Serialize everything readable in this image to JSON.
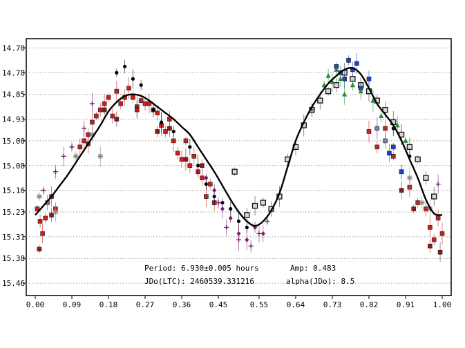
{
  "chart_data": {
    "type": "scatter",
    "title": "",
    "xlabel": "",
    "ylabel": "",
    "xlim": [
      0.0,
      1.0
    ],
    "ylim": [
      15.5,
      14.67
    ],
    "y_inverted": true,
    "grid": "horizontal-dotted",
    "x_ticks": [
      "0.00",
      "0.09",
      "0.18",
      "0.27",
      "0.36",
      "0.45",
      "0.55",
      "0.64",
      "0.73",
      "0.82",
      "0.91",
      "1.00"
    ],
    "y_ticks": [
      "14.70",
      "14.78",
      "14.85",
      "14.93",
      "15.00",
      "15.08",
      "15.16",
      "15.23",
      "15.31",
      "15.38",
      "15.46"
    ],
    "annotations": {
      "period": "Period: 6.930±0.005 hours",
      "jd0": "JDo(LTC): 2460539.331216",
      "amp": "Amp: 0.483",
      "alpha": "alpha(JDo): 8.5"
    },
    "fit_curve": {
      "color": "#000000",
      "x": [
        0.0,
        0.02,
        0.04,
        0.06,
        0.08,
        0.1,
        0.12,
        0.14,
        0.16,
        0.18,
        0.2,
        0.22,
        0.24,
        0.26,
        0.28,
        0.3,
        0.32,
        0.34,
        0.36,
        0.38,
        0.4,
        0.42,
        0.44,
        0.46,
        0.48,
        0.5,
        0.52,
        0.54,
        0.56,
        0.58,
        0.6,
        0.62,
        0.64,
        0.66,
        0.68,
        0.7,
        0.72,
        0.74,
        0.76,
        0.78,
        0.8,
        0.82,
        0.84,
        0.86,
        0.88,
        0.9,
        0.92,
        0.94,
        0.96,
        0.98,
        1.0
      ],
      "y": [
        15.24,
        15.21,
        15.18,
        15.145,
        15.11,
        15.07,
        15.03,
        14.99,
        14.95,
        14.905,
        14.875,
        14.855,
        14.85,
        14.855,
        14.87,
        14.89,
        14.91,
        14.93,
        14.955,
        14.98,
        15.02,
        15.06,
        15.1,
        15.145,
        15.19,
        15.23,
        15.26,
        15.275,
        15.26,
        15.225,
        15.17,
        15.085,
        15.0,
        14.94,
        14.89,
        14.85,
        14.815,
        14.79,
        14.77,
        14.765,
        14.785,
        14.83,
        14.88,
        14.915,
        14.95,
        15.0,
        15.06,
        15.12,
        15.19,
        15.235,
        15.24
      ]
    },
    "series": [
      {
        "marker": "square",
        "color": "#c62020",
        "x": [
          0.005,
          0.012,
          0.018,
          0.025,
          0.03,
          0.04,
          0.05,
          0.11,
          0.12,
          0.13,
          0.14,
          0.15,
          0.16,
          0.17,
          0.18,
          0.19,
          0.2,
          0.21,
          0.22,
          0.23,
          0.24,
          0.25,
          0.26,
          0.27,
          0.28,
          0.29,
          0.3,
          0.31,
          0.32,
          0.33,
          0.34,
          0.35,
          0.36,
          0.37,
          0.38,
          0.39,
          0.4,
          0.41,
          0.42,
          0.43,
          0.44,
          0.82,
          0.84,
          0.86,
          0.88,
          0.9,
          0.92,
          0.94,
          0.96,
          0.97,
          0.98,
          0.99,
          1.0
        ],
        "y": [
          15.22,
          15.26,
          15.3,
          15.25,
          15.2,
          15.18,
          15.22,
          15.02,
          15.0,
          14.98,
          14.94,
          14.92,
          14.9,
          14.88,
          14.86,
          14.92,
          14.84,
          14.88,
          14.86,
          14.83,
          14.86,
          14.9,
          14.87,
          14.88,
          14.88,
          14.9,
          14.91,
          14.95,
          14.97,
          14.93,
          15.0,
          15.04,
          15.06,
          15.0,
          15.08,
          15.05,
          15.1,
          15.12,
          15.18,
          15.14,
          15.2,
          14.97,
          15.02,
          14.96,
          15.05,
          15.1,
          15.15,
          15.2,
          15.22,
          15.28,
          15.32,
          15.25,
          15.3
        ]
      },
      {
        "marker": "square",
        "color": "#8b1a1a",
        "x": [
          0.01,
          0.04,
          0.13,
          0.17,
          0.2,
          0.25,
          0.3,
          0.33,
          0.37,
          0.41,
          0.9,
          0.93,
          0.97,
          0.995
        ],
        "y": [
          15.35,
          15.24,
          15.01,
          14.9,
          14.93,
          14.89,
          14.97,
          14.96,
          15.06,
          15.08,
          15.16,
          15.22,
          15.34,
          15.36
        ]
      },
      {
        "marker": "circle",
        "color": "#000000",
        "x": [
          0.2,
          0.22,
          0.24,
          0.26,
          0.29,
          0.31,
          0.34,
          0.38,
          0.4,
          0.42,
          0.44,
          0.46,
          0.48,
          0.5,
          0.52,
          0.88,
          0.9,
          0.92
        ],
        "y": [
          14.78,
          14.76,
          14.8,
          14.82,
          14.9,
          14.94,
          14.97,
          15.02,
          15.08,
          15.14,
          15.18,
          15.2,
          15.22,
          15.26,
          15.28,
          14.96,
          14.98,
          15.05
        ]
      },
      {
        "marker": "square-open",
        "color": "#333333",
        "x": [
          0.49,
          0.52,
          0.54,
          0.56,
          0.58,
          0.6,
          0.62,
          0.64,
          0.66,
          0.68,
          0.7,
          0.72,
          0.74,
          0.76,
          0.78,
          0.8,
          0.82,
          0.84,
          0.86,
          0.88,
          0.9,
          0.92,
          0.94,
          0.96,
          0.98
        ],
        "y": [
          15.1,
          15.24,
          15.21,
          15.2,
          15.22,
          15.18,
          15.06,
          15.02,
          14.95,
          14.9,
          14.87,
          14.84,
          14.82,
          14.78,
          14.8,
          14.82,
          14.84,
          14.87,
          14.9,
          14.94,
          14.98,
          15.02,
          15.06,
          15.12,
          15.18
        ]
      },
      {
        "marker": "square",
        "color": "#1f3fc8",
        "x": [
          0.74,
          0.75,
          0.76,
          0.77,
          0.78,
          0.79,
          0.8,
          0.82,
          0.84,
          0.86,
          0.87,
          0.88,
          0.9
        ],
        "y": [
          14.76,
          14.78,
          14.8,
          14.74,
          14.77,
          14.75,
          14.83,
          14.8,
          14.96,
          15.0,
          15.04,
          15.02,
          15.1
        ]
      },
      {
        "marker": "triangle",
        "color": "#2a8a3c",
        "x": [
          0.71,
          0.72,
          0.73,
          0.74,
          0.75,
          0.76,
          0.78,
          0.8,
          0.83,
          0.85,
          0.89,
          0.91
        ],
        "y": [
          14.82,
          14.79,
          14.81,
          14.77,
          14.8,
          14.85,
          14.82,
          14.84,
          14.87,
          14.92,
          14.95,
          15.0
        ]
      },
      {
        "marker": "star",
        "color": "#888888",
        "x": [
          0.01,
          0.03,
          0.05,
          0.1,
          0.14,
          0.16,
          0.84,
          0.86,
          0.92,
          0.95,
          0.97
        ],
        "y": [
          15.18,
          15.2,
          15.23,
          15.05,
          14.98,
          15.05,
          14.96,
          15.0,
          15.12,
          15.2,
          15.22
        ]
      },
      {
        "marker": "plus",
        "color": "#7a1f6a",
        "x": [
          0.02,
          0.05,
          0.07,
          0.09,
          0.12,
          0.14,
          0.45,
          0.47,
          0.5,
          0.53,
          0.55,
          0.57,
          0.68,
          0.99
        ],
        "y": [
          15.16,
          15.1,
          15.05,
          15.02,
          14.96,
          14.88,
          15.2,
          15.28,
          15.32,
          15.34,
          15.3,
          15.26,
          14.9,
          15.14
        ]
      },
      {
        "marker": "diamond",
        "color": "#7a1f6a",
        "x": [
          0.42,
          0.44,
          0.46,
          0.48,
          0.5,
          0.52,
          0.54,
          0.56
        ],
        "y": [
          15.12,
          15.16,
          15.22,
          15.25,
          15.3,
          15.32,
          15.28,
          15.3
        ]
      }
    ]
  }
}
